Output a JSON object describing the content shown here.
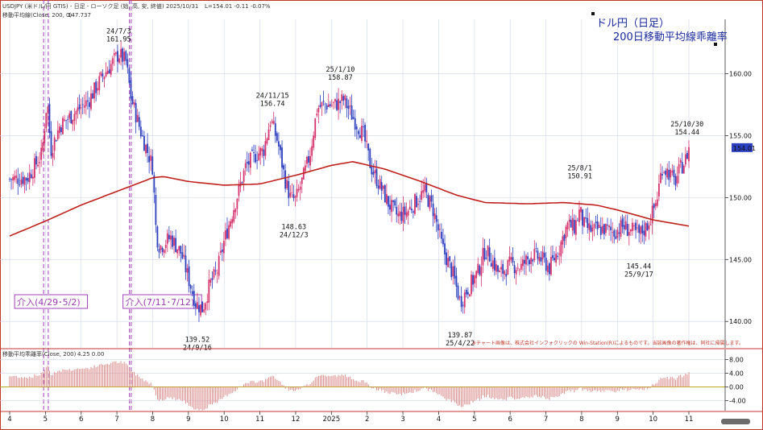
{
  "header": {
    "main_line": "USDJPY (米ドル/円 GTIS) - 日足 - ローソク足 (始, 高, 安, 終値)",
    "main_date": "2025/10/31",
    "main_values": "L=154.01  -0.11  -0.07%",
    "ma_line": "移動平均線(Close, 200, 0)",
    "ma_value": "147.737",
    "dev_line": "移動平均乖離率(Close, 200)",
    "dev_values": "4.25  0.00"
  },
  "title_lines": [
    "ドル円（日足）",
    "200日移動平均線乖離率"
  ],
  "copyright_note": "※チャート画像は、株式会社インフォクリックの Win-Station(R)によるものです。当該画像の著作権は、同社に帰属します。",
  "price_badge": "154.01",
  "colors": {
    "up": "#d6336c",
    "down": "#2b3fbf",
    "ma": "#c0201c",
    "deviation": "#d88a8a",
    "intervention": "#a040b8",
    "frame": "#c0392b",
    "badge": "#2b3fbf"
  },
  "chart_data": [
    {
      "type": "candlestick",
      "y_ticks": [
        "140.00",
        "145.00",
        "150.00",
        "155.00",
        "160.00"
      ],
      "ylim": [
        138,
        164
      ],
      "x_month_labels": [
        "4",
        "5",
        "6",
        "7",
        "8",
        "9",
        "10",
        "11",
        "12",
        "2025",
        "2",
        "3",
        "4",
        "5",
        "6",
        "7",
        "8",
        "9",
        "10",
        "11"
      ],
      "close_path": [
        {
          "m": 0.0,
          "v": 151.5
        },
        {
          "m": 0.5,
          "v": 151.6
        },
        {
          "m": 0.9,
          "v": 153.5
        },
        {
          "m": 1.05,
          "v": 158.0
        },
        {
          "m": 1.15,
          "v": 153.8
        },
        {
          "m": 1.4,
          "v": 155.8
        },
        {
          "m": 1.8,
          "v": 156.8
        },
        {
          "m": 2.2,
          "v": 157.8
        },
        {
          "m": 2.6,
          "v": 159.8
        },
        {
          "m": 2.85,
          "v": 160.8
        },
        {
          "m": 3.05,
          "v": 161.6
        },
        {
          "m": 3.25,
          "v": 161.0
        },
        {
          "m": 3.4,
          "v": 158.0
        },
        {
          "m": 3.7,
          "v": 155.0
        },
        {
          "m": 4.0,
          "v": 152.5
        },
        {
          "m": 4.1,
          "v": 147.0
        },
        {
          "m": 4.2,
          "v": 146.0
        },
        {
          "m": 4.5,
          "v": 146.8
        },
        {
          "m": 4.8,
          "v": 145.5
        },
        {
          "m": 5.05,
          "v": 143.0
        },
        {
          "m": 5.2,
          "v": 141.5
        },
        {
          "m": 5.4,
          "v": 141.0
        },
        {
          "m": 5.6,
          "v": 143.0
        },
        {
          "m": 5.8,
          "v": 144.0
        },
        {
          "m": 6.0,
          "v": 146.5
        },
        {
          "m": 6.3,
          "v": 149.5
        },
        {
          "m": 6.6,
          "v": 152.5
        },
        {
          "m": 6.9,
          "v": 153.5
        },
        {
          "m": 7.1,
          "v": 153.8
        },
        {
          "m": 7.3,
          "v": 156.3
        },
        {
          "m": 7.5,
          "v": 154.5
        },
        {
          "m": 7.7,
          "v": 151.5
        },
        {
          "m": 7.85,
          "v": 150.0
        },
        {
          "m": 8.0,
          "v": 149.8
        },
        {
          "m": 8.2,
          "v": 151.5
        },
        {
          "m": 8.4,
          "v": 153.5
        },
        {
          "m": 8.6,
          "v": 157.2
        },
        {
          "m": 8.8,
          "v": 157.5
        },
        {
          "m": 9.1,
          "v": 157.5
        },
        {
          "m": 9.35,
          "v": 157.9
        },
        {
          "m": 9.6,
          "v": 156.5
        },
        {
          "m": 9.9,
          "v": 155.0
        },
        {
          "m": 10.1,
          "v": 152.5
        },
        {
          "m": 10.35,
          "v": 151.0
        },
        {
          "m": 10.6,
          "v": 149.5
        },
        {
          "m": 10.85,
          "v": 148.5
        },
        {
          "m": 11.1,
          "v": 148.8
        },
        {
          "m": 11.3,
          "v": 149.5
        },
        {
          "m": 11.6,
          "v": 150.5
        },
        {
          "m": 11.85,
          "v": 149.0
        },
        {
          "m": 12.1,
          "v": 146.0
        },
        {
          "m": 12.4,
          "v": 143.8
        },
        {
          "m": 12.6,
          "v": 141.6
        },
        {
          "m": 12.85,
          "v": 142.8
        },
        {
          "m": 13.1,
          "v": 144.0
        },
        {
          "m": 13.3,
          "v": 145.8
        },
        {
          "m": 13.45,
          "v": 145.2
        },
        {
          "m": 13.7,
          "v": 143.8
        },
        {
          "m": 14.0,
          "v": 144.6
        },
        {
          "m": 14.3,
          "v": 144.4
        },
        {
          "m": 14.6,
          "v": 145.4
        },
        {
          "m": 14.9,
          "v": 145.0
        },
        {
          "m": 15.1,
          "v": 144.3
        },
        {
          "m": 15.35,
          "v": 145.8
        },
        {
          "m": 15.6,
          "v": 147.8
        },
        {
          "m": 15.8,
          "v": 147.6
        },
        {
          "m": 15.95,
          "v": 149.0
        },
        {
          "m": 16.05,
          "v": 147.8
        },
        {
          "m": 16.3,
          "v": 147.3
        },
        {
          "m": 16.6,
          "v": 147.5
        },
        {
          "m": 16.9,
          "v": 147.2
        },
        {
          "m": 17.15,
          "v": 147.7
        },
        {
          "m": 17.4,
          "v": 147.3
        },
        {
          "m": 17.6,
          "v": 147.0
        },
        {
          "m": 17.8,
          "v": 147.6
        },
        {
          "m": 17.95,
          "v": 148.5
        },
        {
          "m": 18.1,
          "v": 149.8
        },
        {
          "m": 18.25,
          "v": 152.5
        },
        {
          "m": 18.45,
          "v": 152.0
        },
        {
          "m": 18.6,
          "v": 151.2
        },
        {
          "m": 18.75,
          "v": 152.3
        },
        {
          "m": 18.9,
          "v": 153.0
        },
        {
          "m": 19.0,
          "v": 154.0
        }
      ],
      "ma_path": [
        {
          "m": 0.0,
          "v": 146.9
        },
        {
          "m": 1.0,
          "v": 148.1
        },
        {
          "m": 2.0,
          "v": 149.4
        },
        {
          "m": 3.0,
          "v": 150.5
        },
        {
          "m": 4.0,
          "v": 151.6
        },
        {
          "m": 4.3,
          "v": 151.7
        },
        {
          "m": 5.0,
          "v": 151.3
        },
        {
          "m": 6.0,
          "v": 151.0
        },
        {
          "m": 7.0,
          "v": 151.1
        },
        {
          "m": 8.0,
          "v": 151.8
        },
        {
          "m": 9.0,
          "v": 152.6
        },
        {
          "m": 9.6,
          "v": 152.9
        },
        {
          "m": 10.5,
          "v": 152.3
        },
        {
          "m": 11.5,
          "v": 151.3
        },
        {
          "m": 12.5,
          "v": 150.2
        },
        {
          "m": 13.3,
          "v": 149.6
        },
        {
          "m": 14.5,
          "v": 149.5
        },
        {
          "m": 15.5,
          "v": 149.6
        },
        {
          "m": 16.4,
          "v": 149.4
        },
        {
          "m": 17.0,
          "v": 149.0
        },
        {
          "m": 18.0,
          "v": 148.2
        },
        {
          "m": 19.0,
          "v": 147.7
        }
      ],
      "moving_average_period": 200,
      "annotations": [
        {
          "date": "24/7/3",
          "value": "161.95",
          "m": 3.05,
          "placement": "above"
        },
        {
          "date": "24/9/16",
          "value": "139.52",
          "m": 5.25,
          "placement": "below"
        },
        {
          "date": "24/11/15",
          "value": "156.74",
          "m": 7.35,
          "placement": "above"
        },
        {
          "date": "24/12/3",
          "value": "148.63",
          "m": 7.95,
          "placement": "below"
        },
        {
          "date": "25/1/10",
          "value": "158.87",
          "m": 9.25,
          "placement": "above"
        },
        {
          "date": "25/4/22",
          "value": "139.87",
          "m": 12.6,
          "placement": "below"
        },
        {
          "date": "25/8/1",
          "value": "150.91",
          "m": 15.95,
          "placement": "above"
        },
        {
          "date": "25/9/17",
          "value": "145.44",
          "m": 17.6,
          "placement": "below"
        },
        {
          "date": "25/10/30",
          "value": "154.44",
          "m": 18.95,
          "placement": "above"
        }
      ],
      "interventions": [
        {
          "label": "介入(4/29･5/2)",
          "m_start": 0.95,
          "m_end": 1.08
        },
        {
          "label": "介入(7/11･7/12)",
          "m_start": 3.35,
          "m_end": 3.4
        }
      ]
    },
    {
      "type": "bar",
      "title": "移動平均乖離率(Close, 200)",
      "y_ticks": [
        "8.00",
        "4.00",
        "0.00",
        "-4.00"
      ],
      "ylim": [
        -6.5,
        10
      ],
      "series": [
        {
          "name": "移動平均乖離率",
          "derived_from": "close_path / ma_path - 1"
        }
      ]
    }
  ]
}
